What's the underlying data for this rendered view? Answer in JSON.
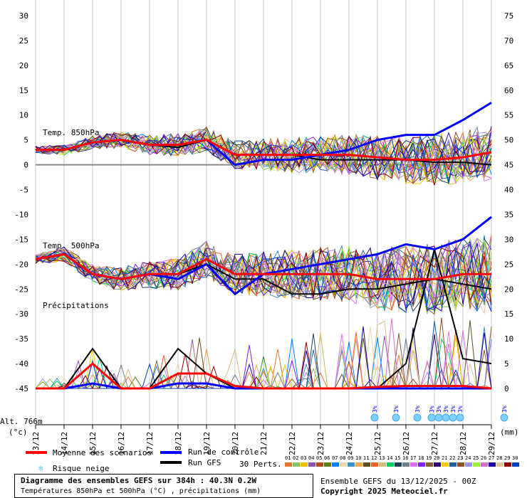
{
  "chart_data": {
    "type": "line",
    "title": "Diagramme des ensembles GEFS sur 384h : 40.3N 0.2W",
    "subtitle": "Températures 850hPa et 500hPa (°C) , précipitations (mm)",
    "run_info": "Ensemble GEFS du 13/12/2025 - 00Z",
    "copyright": "Copyright 2025 Meteociel.fr",
    "altitude": "Alt. 766m",
    "left_unit": "(°c)",
    "right_unit": "(mm)",
    "left_ylim": [
      -45,
      30
    ],
    "right_ylim": [
      0,
      75
    ],
    "left_ticks": [
      30,
      25,
      20,
      15,
      10,
      5,
      0,
      -5,
      -10,
      -15,
      -20,
      -25,
      -30,
      -35,
      -40,
      -45
    ],
    "right_ticks": [
      75,
      70,
      65,
      60,
      55,
      50,
      45,
      40,
      35,
      30,
      25,
      20,
      15,
      10,
      5,
      0
    ],
    "x_labels": [
      "13/12",
      "14/12",
      "15/12",
      "16/12",
      "17/12",
      "18/12",
      "19/12",
      "20/12",
      "21/12",
      "22/12",
      "23/12",
      "24/12",
      "25/12",
      "26/12",
      "27/12",
      "28/12",
      "29/12"
    ],
    "panel_labels": {
      "t850": "Temp. 850hPa",
      "t500": "Temp. 500hPa",
      "precip": "Précipitations"
    },
    "series": [
      {
        "name": "Moyenne des scénarios",
        "color": "#ff0000",
        "t850": [
          3,
          3,
          4.5,
          5,
          4,
          4,
          5,
          2,
          2,
          2,
          2,
          2,
          1.5,
          1,
          1,
          1.5,
          2.5
        ],
        "t500": [
          -19,
          -18,
          -22,
          -23,
          -22,
          -22,
          -19,
          -22,
          -22,
          -22,
          -22,
          -22,
          -23,
          -23,
          -23,
          -22,
          -22
        ],
        "precip": [
          0,
          0,
          5,
          0,
          0,
          3,
          3,
          0.5,
          0,
          0,
          0,
          0,
          0.3,
          0.5,
          0.5,
          0.5,
          0
        ]
      },
      {
        "name": "Run de contrôle",
        "color": "#0000ff",
        "t850": [
          3,
          3,
          4.5,
          5,
          4,
          4,
          5,
          0,
          1,
          1,
          2,
          3,
          5,
          6,
          6,
          9,
          12.5
        ],
        "t500": [
          -19,
          -18,
          -22,
          -23,
          -22,
          -23,
          -20,
          -26,
          -22,
          -21,
          -20,
          -19,
          -18,
          -16,
          -17,
          -15,
          -10.5
        ],
        "precip": [
          0,
          0,
          1,
          0,
          0,
          1,
          1,
          0,
          0,
          0,
          0,
          0,
          0,
          0,
          0,
          0,
          0
        ]
      },
      {
        "name": "Run GFS",
        "color": "#000000",
        "t850": [
          3,
          3,
          4.5,
          5,
          4,
          3.5,
          5,
          2,
          2,
          2,
          1,
          1,
          1,
          1,
          0.5,
          0.5,
          0
        ],
        "t500": [
          -19,
          -18,
          -22,
          -23,
          -22,
          -22,
          -20,
          -23,
          -23,
          -26,
          -26,
          -25,
          -25,
          -24,
          -23,
          -24,
          -25
        ],
        "precip": [
          0,
          0,
          8,
          0,
          0,
          8,
          3,
          0,
          0,
          0,
          0,
          0,
          0,
          5,
          28,
          6,
          5
        ]
      }
    ],
    "snow_risk": {
      "label": "Risque neige",
      "day_positions": [
        11.9,
        12.65,
        13.4,
        13.9,
        14.15,
        14.4,
        14.65,
        14.9,
        16.45
      ],
      "values": [
        "3%",
        "3%",
        "3%",
        "3%",
        "3%",
        "3%",
        "3%",
        "3%",
        "3%"
      ]
    },
    "perts": {
      "label": "30 Perts.",
      "numbers": [
        "01",
        "02",
        "03",
        "04",
        "05",
        "06",
        "07",
        "08",
        "09",
        "10",
        "11",
        "12",
        "13",
        "14",
        "15",
        "16",
        "17",
        "18",
        "19",
        "20",
        "21",
        "22",
        "23",
        "24",
        "25",
        "26",
        "27",
        "28",
        "29",
        "30"
      ],
      "colors": [
        "#e07830",
        "#88c060",
        "#f0c000",
        "#9050b0",
        "#b05010",
        "#608010",
        "#0080ff",
        "#e8d8b0",
        "#4090c0",
        "#e8a850",
        "#605020",
        "#f06020",
        "#d0c080",
        "#00d060",
        "#204060",
        "#708090",
        "#e070f0",
        "#8020f0",
        "#806030",
        "#300070",
        "#f0d000",
        "#2060a0",
        "#905020",
        "#a090e8",
        "#a0f040",
        "#d070d0",
        "#2000a0",
        "#e0c8a0",
        "#900000",
        "#0040c0"
      ]
    }
  }
}
